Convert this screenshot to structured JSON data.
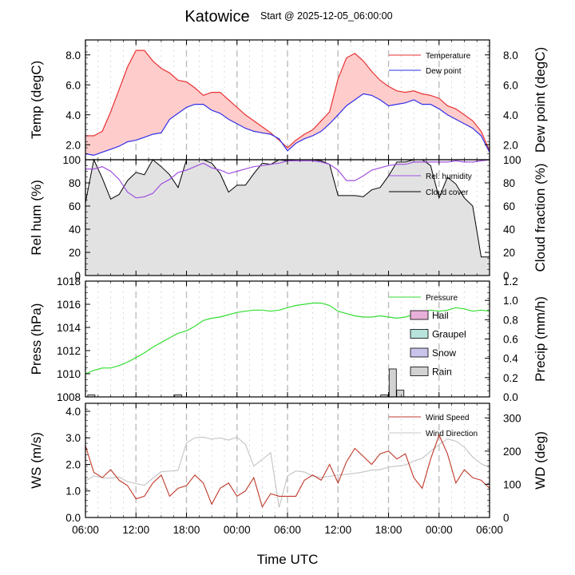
{
  "header": {
    "title": "Katowice",
    "subtitle": "Start @ 2025-12-05_06:00:00"
  },
  "x_axis": {
    "label": "Time UTC",
    "tick_labels": [
      "06:00",
      "12:00",
      "18:00",
      "00:00",
      "06:00",
      "12:00",
      "18:00",
      "00:00",
      "06:00"
    ],
    "range_hours": [
      0,
      48
    ]
  },
  "colors": {
    "temperature": "#e83232",
    "temperature_fill": "#ffcccc",
    "dew_point": "#2f2fe8",
    "rel_humidity": "#a050e0",
    "cloud_cover": "#000000",
    "cloud_fill": "#e2e2e2",
    "pressure": "#33dd33",
    "hail": "#e8b0d8",
    "graupel": "#b8e4dc",
    "snow": "#c8c4ec",
    "rain": "#d2d2d2",
    "wind_speed": "#c0392b",
    "wind_direction": "#c8c8c8"
  },
  "chart_data": [
    {
      "type": "area",
      "panel": "temperature",
      "left_axis": {
        "label": "Temp (degC)",
        "ticks": [
          "2.0",
          "4.0",
          "6.0",
          "8.0"
        ],
        "ylim": [
          1.0,
          9.0
        ]
      },
      "right_axis": {
        "label": "Dew point (degC)",
        "ticks": [
          "2.0",
          "4.0",
          "6.0",
          "8.0"
        ],
        "ylim": [
          1.0,
          9.0
        ]
      },
      "legend": [
        "Temperature",
        "Dew point"
      ],
      "x": [
        0,
        1,
        2,
        3,
        4,
        5,
        6,
        7,
        8,
        9,
        10,
        11,
        12,
        13,
        14,
        15,
        16,
        17,
        18,
        19,
        20,
        21,
        22,
        23,
        24,
        25,
        26,
        27,
        28,
        29,
        30,
        31,
        32,
        33,
        34,
        35,
        36,
        37,
        38,
        39,
        40,
        41,
        42,
        43,
        44,
        45,
        46,
        47,
        48
      ],
      "series": [
        {
          "name": "Temperature",
          "values": [
            2.6,
            2.6,
            2.9,
            4.2,
            5.7,
            7.2,
            8.3,
            8.3,
            7.6,
            7.1,
            6.8,
            6.3,
            6.2,
            5.8,
            5.3,
            5.5,
            5.5,
            5.0,
            4.5,
            4.0,
            3.6,
            3.2,
            2.8,
            2.3,
            1.8,
            2.3,
            2.7,
            3.0,
            3.6,
            4.2,
            6.4,
            7.8,
            8.1,
            7.6,
            6.9,
            6.3,
            5.9,
            5.6,
            5.5,
            5.6,
            5.4,
            5.3,
            5.1,
            4.6,
            4.4,
            4.0,
            3.6,
            2.9,
            1.6
          ]
        },
        {
          "name": "Dew point",
          "values": [
            1.4,
            1.3,
            1.5,
            1.7,
            1.9,
            2.2,
            2.3,
            2.5,
            2.7,
            2.8,
            3.7,
            4.1,
            4.5,
            4.7,
            4.7,
            4.3,
            4.1,
            3.7,
            3.4,
            3.1,
            2.9,
            2.8,
            2.7,
            2.4,
            1.6,
            2.1,
            2.4,
            2.6,
            2.9,
            3.4,
            4.0,
            4.6,
            5.0,
            5.4,
            5.3,
            5.0,
            4.6,
            4.7,
            4.8,
            5.0,
            4.7,
            4.7,
            4.4,
            4.0,
            3.7,
            3.4,
            3.1,
            2.6,
            1.5
          ]
        }
      ]
    },
    {
      "type": "area",
      "panel": "humidity_cloud",
      "left_axis": {
        "label": "Rel hum (%)",
        "ticks": [
          "0",
          "20",
          "40",
          "60",
          "80",
          "100"
        ],
        "ylim": [
          0,
          100
        ]
      },
      "right_axis": {
        "label": "Cloud fraction (%)",
        "ticks": [
          "0",
          "20",
          "40",
          "60",
          "80",
          "100"
        ],
        "ylim": [
          0,
          100
        ]
      },
      "legend": [
        "Rel. humidity",
        "Cloud cover"
      ],
      "x": [
        0,
        1,
        2,
        3,
        4,
        5,
        6,
        7,
        8,
        9,
        10,
        11,
        12,
        13,
        14,
        15,
        16,
        17,
        18,
        19,
        20,
        21,
        22,
        23,
        24,
        25,
        26,
        27,
        28,
        29,
        30,
        31,
        32,
        33,
        34,
        35,
        36,
        37,
        38,
        39,
        40,
        41,
        42,
        43,
        44,
        45,
        46,
        47,
        48
      ],
      "series": [
        {
          "name": "Rel. humidity",
          "values": [
            92,
            92,
            94,
            90,
            83,
            72,
            67,
            68,
            71,
            79,
            83,
            89,
            91,
            94,
            97,
            93,
            91,
            88,
            90,
            92,
            94,
            95,
            96,
            97,
            99,
            99,
            99,
            99,
            98,
            96,
            91,
            82,
            82,
            86,
            91,
            93,
            95,
            96,
            96,
            98,
            98,
            98,
            98,
            98,
            99,
            98,
            98,
            99,
            100
          ]
        },
        {
          "name": "Cloud cover",
          "values": [
            63,
            100,
            84,
            66,
            70,
            82,
            89,
            87,
            100,
            94,
            87,
            76,
            100,
            100,
            100,
            97,
            88,
            72,
            78,
            78,
            88,
            97,
            96,
            100,
            99,
            100,
            100,
            100,
            99,
            96,
            69,
            69,
            69,
            68,
            74,
            76,
            86,
            98,
            98,
            100,
            100,
            95,
            67,
            85,
            79,
            67,
            60,
            16,
            16
          ]
        }
      ]
    },
    {
      "type": "line",
      "panel": "pressure_precip",
      "left_axis": {
        "label": "Press (hPa)",
        "ticks": [
          "1008",
          "1010",
          "1012",
          "1014",
          "1016",
          "1018"
        ],
        "ylim": [
          1008,
          1018
        ]
      },
      "right_axis": {
        "label": "Precip (mm/h)",
        "ticks": [
          "0.0",
          "0.2",
          "0.4",
          "0.6",
          "0.8",
          "1.0",
          "1.2"
        ],
        "ylim": [
          0,
          1.2
        ]
      },
      "legend": [
        "Pressure",
        "Hail",
        "Graupel",
        "Snow",
        "Rain"
      ],
      "x": [
        0,
        1,
        2,
        3,
        4,
        5,
        6,
        7,
        8,
        9,
        10,
        11,
        12,
        13,
        14,
        15,
        16,
        17,
        18,
        19,
        20,
        21,
        22,
        23,
        24,
        25,
        26,
        27,
        28,
        29,
        30,
        31,
        32,
        33,
        34,
        35,
        36,
        37,
        38,
        39,
        40,
        41,
        42,
        43,
        44,
        45,
        46,
        47,
        48
      ],
      "series": [
        {
          "name": "Pressure",
          "values": [
            1010.0,
            1010.3,
            1010.5,
            1010.5,
            1010.7,
            1011.0,
            1011.4,
            1011.8,
            1012.3,
            1012.7,
            1013.1,
            1013.5,
            1013.7,
            1014.1,
            1014.6,
            1014.8,
            1014.9,
            1015.1,
            1015.3,
            1015.4,
            1015.5,
            1015.5,
            1015.4,
            1015.5,
            1015.7,
            1015.9,
            1016.0,
            1016.1,
            1016.1,
            1015.9,
            1015.4,
            1015.2,
            1015.0,
            1014.9,
            1014.9,
            1015.0,
            1014.9,
            1014.8,
            1014.9,
            1015.1,
            1015.3,
            1015.5,
            1015.4,
            1015.5,
            1015.7,
            1015.6,
            1015.4,
            1015.5,
            1015.4
          ]
        }
      ],
      "rain_bars": [
        {
          "x": 0.7,
          "value": 0.02
        },
        {
          "x": 11.0,
          "value": 0.02
        },
        {
          "x": 35.5,
          "value": 0.02
        },
        {
          "x": 36.5,
          "value": 0.29
        },
        {
          "x": 37.4,
          "value": 0.07
        }
      ]
    },
    {
      "type": "line",
      "panel": "wind",
      "left_axis": {
        "label": "WS (m/s)",
        "ticks": [
          "0.0",
          "1.0",
          "2.0",
          "3.0",
          "4.0"
        ],
        "ylim": [
          0,
          4.3
        ]
      },
      "right_axis": {
        "label": "WD (deg)",
        "ticks": [
          "0",
          "100",
          "200",
          "300"
        ],
        "ylim": [
          0,
          344
        ]
      },
      "legend": [
        "Wind Speed",
        "Wind Direction"
      ],
      "x": [
        0,
        1,
        2,
        3,
        4,
        5,
        6,
        7,
        8,
        9,
        10,
        11,
        12,
        13,
        14,
        15,
        16,
        17,
        18,
        19,
        20,
        21,
        22,
        23,
        24,
        25,
        26,
        27,
        28,
        29,
        30,
        31,
        32,
        33,
        34,
        35,
        36,
        37,
        38,
        39,
        40,
        41,
        42,
        43,
        44,
        45,
        46,
        47,
        48
      ],
      "series": [
        {
          "name": "Wind Speed",
          "values": [
            2.7,
            1.7,
            1.5,
            1.8,
            1.4,
            1.2,
            0.7,
            0.8,
            1.3,
            1.6,
            0.8,
            1.1,
            1.2,
            1.6,
            1.3,
            0.5,
            1.1,
            1.3,
            0.8,
            1.0,
            1.5,
            0.4,
            0.9,
            0.8,
            0.8,
            0.8,
            1.4,
            1.6,
            1.4,
            2.0,
            1.3,
            2.1,
            2.6,
            2.3,
            2.0,
            2.4,
            2.5,
            2.2,
            2.4,
            1.5,
            1.1,
            2.2,
            3.1,
            2.4,
            1.3,
            1.8,
            1.5,
            1.4,
            1.1
          ]
        },
        {
          "name": "Wind Direction",
          "values": [
            110,
            125,
            120,
            118,
            122,
            108,
            102,
            97,
            118,
            138,
            140,
            142,
            225,
            240,
            242,
            236,
            240,
            233,
            242,
            220,
            155,
            175,
            195,
            30,
            125,
            140,
            137,
            125,
            120,
            124,
            128,
            130,
            133,
            137,
            143,
            144,
            152,
            155,
            158,
            170,
            178,
            200,
            220,
            237,
            230,
            212,
            182,
            162,
            150
          ]
        }
      ]
    }
  ]
}
